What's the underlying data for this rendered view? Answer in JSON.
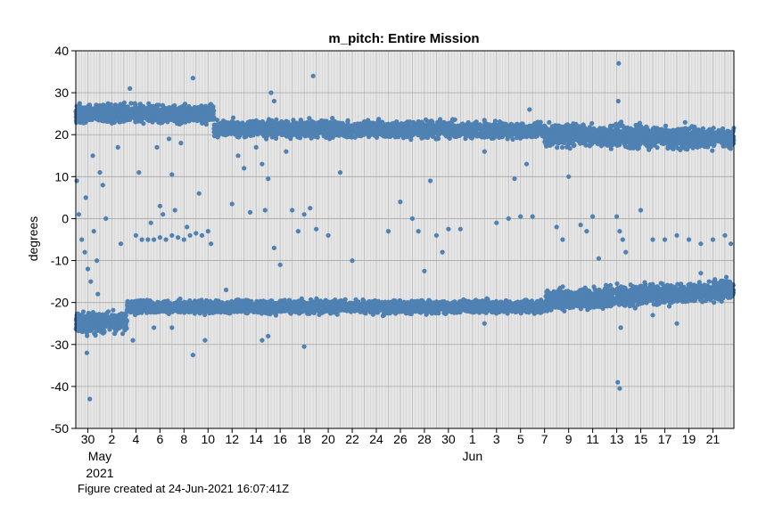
{
  "chart_data": {
    "type": "scatter",
    "title": "m_pitch: Entire Mission",
    "ylabel": "degrees",
    "xlabel": "",
    "ylim": [
      -50,
      40
    ],
    "y_ticks": [
      -50,
      -40,
      -30,
      -20,
      -10,
      0,
      10,
      20,
      30,
      40
    ],
    "xlim": [
      "2021-04-29T00:00",
      "2021-06-22T18:00"
    ],
    "x_tick_dates": [
      "2021-04-30",
      "2021-05-02",
      "2021-05-04",
      "2021-05-06",
      "2021-05-08",
      "2021-05-10",
      "2021-05-12",
      "2021-05-14",
      "2021-05-16",
      "2021-05-18",
      "2021-05-20",
      "2021-05-22",
      "2021-05-24",
      "2021-05-26",
      "2021-05-28",
      "2021-05-30",
      "2021-06-01",
      "2021-06-03",
      "2021-06-05",
      "2021-06-07",
      "2021-06-09",
      "2021-06-11",
      "2021-06-13",
      "2021-06-15",
      "2021-06-17",
      "2021-06-19",
      "2021-06-21"
    ],
    "x_tick_labels": [
      "30",
      "2",
      "4",
      "6",
      "8",
      "10",
      "12",
      "14",
      "16",
      "18",
      "20",
      "22",
      "24",
      "26",
      "28",
      "30",
      "1",
      "3",
      "5",
      "7",
      "9",
      "11",
      "13",
      "15",
      "17",
      "19",
      "21"
    ],
    "month_labels": [
      {
        "label": "May",
        "date": "2021-05-01"
      },
      {
        "label": "Jun",
        "date": "2021-06-01"
      }
    ],
    "year_label": "2021",
    "grid": true,
    "marker_color": "#4f81b3",
    "series": [
      {
        "dense_bands": [
          {
            "start": "2021-04-29T00:00",
            "end": "2021-05-10T12:00",
            "center_start": 25.0,
            "center_end": 25.0,
            "spread": 1.8
          },
          {
            "start": "2021-05-10T12:00",
            "end": "2021-06-07T00:00",
            "center_start": 21.5,
            "center_end": 21.0,
            "spread": 1.6
          },
          {
            "start": "2021-06-07T00:00",
            "end": "2021-06-22T18:00",
            "center_start": 20.0,
            "center_end": 19.0,
            "spread": 2.2
          },
          {
            "start": "2021-04-29T00:00",
            "end": "2021-05-03T06:00",
            "center_start": -25.0,
            "center_end": -24.5,
            "spread": 2.2
          },
          {
            "start": "2021-05-03T06:00",
            "end": "2021-06-07T00:00",
            "center_start": -21.0,
            "center_end": -21.0,
            "spread": 1.3
          },
          {
            "start": "2021-06-07T00:00",
            "end": "2021-06-22T18:00",
            "center_start": -19.5,
            "center_end": -17.0,
            "spread": 2.0
          }
        ],
        "points": [
          [
            "2021-04-29T02:00",
            9.0
          ],
          [
            "2021-04-29T06:00",
            1.0
          ],
          [
            "2021-04-29T12:00",
            -5.0
          ],
          [
            "2021-04-29T18:00",
            -8.0
          ],
          [
            "2021-04-30T00:00",
            -12.0
          ],
          [
            "2021-04-30T06:00",
            -15.0
          ],
          [
            "2021-04-30T12:00",
            -3.0
          ],
          [
            "2021-04-30T18:00",
            -10.0
          ],
          [
            "2021-04-29T20:00",
            5.0
          ],
          [
            "2021-04-30T10:00",
            15.0
          ],
          [
            "2021-05-01T00:00",
            11.0
          ],
          [
            "2021-05-01T06:00",
            8.0
          ],
          [
            "2021-04-30T04:00",
            -43.0
          ],
          [
            "2021-04-29T22:00",
            -32.0
          ],
          [
            "2021-04-30T20:00",
            -18.0
          ],
          [
            "2021-05-01T12:00",
            0.0
          ],
          [
            "2021-05-02T12:00",
            17.0
          ],
          [
            "2021-05-02T18:00",
            -6.0
          ],
          [
            "2021-05-03T12:00",
            31.0
          ],
          [
            "2021-05-03T18:00",
            -29.0
          ],
          [
            "2021-05-04T06:00",
            11.0
          ],
          [
            "2021-05-04T00:00",
            -4.0
          ],
          [
            "2021-05-04T12:00",
            -5.0
          ],
          [
            "2021-05-05T00:00",
            -5.0
          ],
          [
            "2021-05-05T12:00",
            -5.0
          ],
          [
            "2021-05-06T00:00",
            -4.5
          ],
          [
            "2021-05-06T12:00",
            -5.0
          ],
          [
            "2021-05-07T00:00",
            -4.0
          ],
          [
            "2021-05-07T12:00",
            -4.5
          ],
          [
            "2021-05-08T00:00",
            -5.0
          ],
          [
            "2021-05-08T12:00",
            -4.0
          ],
          [
            "2021-05-09T00:00",
            -3.5
          ],
          [
            "2021-05-09T12:00",
            -4.0
          ],
          [
            "2021-05-10T00:00",
            -3.0
          ],
          [
            "2021-05-05T06:00",
            -1.0
          ],
          [
            "2021-05-06T06:00",
            1.0
          ],
          [
            "2021-05-07T06:00",
            2.0
          ],
          [
            "2021-05-08T06:00",
            -2.0
          ],
          [
            "2021-05-09T06:00",
            6.0
          ],
          [
            "2021-05-10T06:00",
            -6.0
          ],
          [
            "2021-05-05T18:00",
            17.0
          ],
          [
            "2021-05-06T18:00",
            19.0
          ],
          [
            "2021-05-07T18:00",
            18.0
          ],
          [
            "2021-05-08T18:00",
            33.5
          ],
          [
            "2021-05-07T00:00",
            10.5
          ],
          [
            "2021-05-06T00:00",
            3.0
          ],
          [
            "2021-05-08T18:00",
            -32.5
          ],
          [
            "2021-05-09T18:00",
            -29.0
          ],
          [
            "2021-05-05T12:00",
            -26.0
          ],
          [
            "2021-05-07T00:00",
            -26.0
          ],
          [
            "2021-05-12T00:00",
            3.5
          ],
          [
            "2021-05-12T12:00",
            15.0
          ],
          [
            "2021-05-13T00:00",
            12.0
          ],
          [
            "2021-05-13T12:00",
            1.5
          ],
          [
            "2021-05-14T00:00",
            17.0
          ],
          [
            "2021-05-14T12:00",
            13.0
          ],
          [
            "2021-05-15T00:00",
            9.5
          ],
          [
            "2021-05-15T06:00",
            30.0
          ],
          [
            "2021-05-15T12:00",
            28.0
          ],
          [
            "2021-05-14T18:00",
            2.0
          ],
          [
            "2021-05-15T12:00",
            -7.0
          ],
          [
            "2021-05-16T00:00",
            -11.0
          ],
          [
            "2021-05-16T12:00",
            16.0
          ],
          [
            "2021-05-17T00:00",
            2.0
          ],
          [
            "2021-05-17T12:00",
            -3.0
          ],
          [
            "2021-05-18T00:00",
            1.0
          ],
          [
            "2021-05-18T12:00",
            2.5
          ],
          [
            "2021-05-18T18:00",
            34.0
          ],
          [
            "2021-05-19T00:00",
            -2.5
          ],
          [
            "2021-05-20T00:00",
            -4.0
          ],
          [
            "2021-05-21T00:00",
            11.0
          ],
          [
            "2021-05-22T00:00",
            -10.0
          ],
          [
            "2021-05-15T00:00",
            -28.0
          ],
          [
            "2021-05-14T12:00",
            -29.0
          ],
          [
            "2021-05-18T00:00",
            -30.5
          ],
          [
            "2021-05-11T12:00",
            -17.0
          ],
          [
            "2021-05-25T00:00",
            -3.0
          ],
          [
            "2021-05-26T00:00",
            4.0
          ],
          [
            "2021-05-27T00:00",
            0.0
          ],
          [
            "2021-05-27T12:00",
            -3.0
          ],
          [
            "2021-05-28T00:00",
            -12.5
          ],
          [
            "2021-05-28T12:00",
            9.0
          ],
          [
            "2021-05-29T00:00",
            -4.0
          ],
          [
            "2021-05-29T12:00",
            -8.0
          ],
          [
            "2021-05-30T00:00",
            -2.5
          ],
          [
            "2021-05-31T00:00",
            -2.5
          ],
          [
            "2021-06-02T00:00",
            16.0
          ],
          [
            "2021-06-03T00:00",
            -1.0
          ],
          [
            "2021-06-04T00:00",
            0.0
          ],
          [
            "2021-06-05T00:00",
            0.5
          ],
          [
            "2021-06-04T12:00",
            9.5
          ],
          [
            "2021-06-05T12:00",
            13.0
          ],
          [
            "2021-06-05T18:00",
            26.0
          ],
          [
            "2021-06-06T00:00",
            0.5
          ],
          [
            "2021-06-08T00:00",
            -2.0
          ],
          [
            "2021-06-08T12:00",
            -5.0
          ],
          [
            "2021-06-09T00:00",
            10.0
          ],
          [
            "2021-06-10T00:00",
            -1.5
          ],
          [
            "2021-06-10T12:00",
            -3.0
          ],
          [
            "2021-06-11T00:00",
            0.5
          ],
          [
            "2021-06-11T12:00",
            -9.5
          ],
          [
            "2021-06-13T00:00",
            0.5
          ],
          [
            "2021-06-13T06:00",
            -3.0
          ],
          [
            "2021-06-13T12:00",
            -5.0
          ],
          [
            "2021-06-13T18:00",
            -8.0
          ],
          [
            "2021-06-13T04:00",
            37.0
          ],
          [
            "2021-06-13T03:00",
            28.0
          ],
          [
            "2021-06-13T02:00",
            -39.0
          ],
          [
            "2021-06-13T06:00",
            -40.5
          ],
          [
            "2021-06-13T08:00",
            -26.0
          ],
          [
            "2021-06-15T00:00",
            2.0
          ],
          [
            "2021-06-16T00:00",
            -5.0
          ],
          [
            "2021-06-17T00:00",
            -5.0
          ],
          [
            "2021-06-18T00:00",
            -4.0
          ],
          [
            "2021-06-19T00:00",
            -5.0
          ],
          [
            "2021-06-20T00:00",
            -6.0
          ],
          [
            "2021-06-21T00:00",
            -5.0
          ],
          [
            "2021-06-22T00:00",
            -4.0
          ],
          [
            "2021-06-22T12:00",
            -6.0
          ],
          [
            "2021-06-16T00:00",
            -23.0
          ],
          [
            "2021-06-18T00:00",
            -25.0
          ],
          [
            "2021-06-20T00:00",
            -13.0
          ],
          [
            "2021-06-05T00:00",
            -22.0
          ],
          [
            "2021-06-02T00:00",
            -25.0
          ]
        ]
      }
    ]
  },
  "footer": {
    "note": "Figure created at 24-Jun-2021 16:07:41Z"
  }
}
